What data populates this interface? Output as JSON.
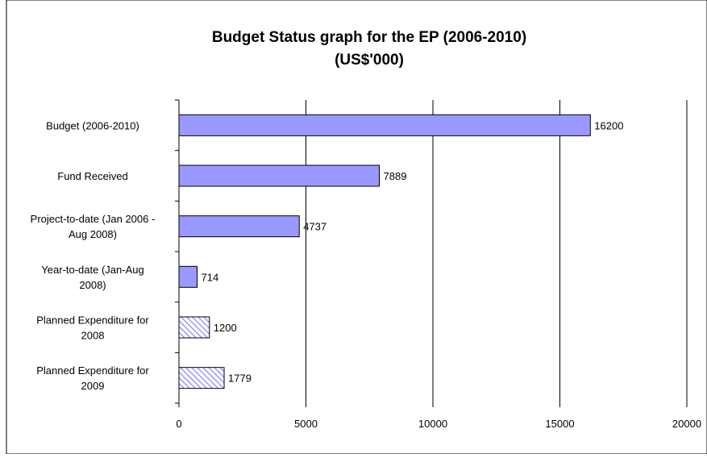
{
  "chart_data": {
    "type": "bar",
    "orientation": "horizontal",
    "title": "Budget Status graph for the EP (2006-2010)",
    "subtitle": "(US$'000)",
    "categories": [
      [
        "Budget (2006-2010)"
      ],
      [
        "Fund Received"
      ],
      [
        "Project-to-date (Jan 2006 -",
        "Aug 2008)"
      ],
      [
        "Year-to-date (Jan-Aug",
        "2008)"
      ],
      [
        "Planned Expenditure for",
        "2008"
      ],
      [
        "Planned Expenditure for",
        "2009"
      ]
    ],
    "values": [
      16200,
      7889,
      4737,
      714,
      1200,
      1779
    ],
    "data_labels": [
      "16200",
      "7889",
      "4737",
      "714",
      "1200",
      "1779"
    ],
    "bar_fill": [
      "solid",
      "solid",
      "solid",
      "solid",
      "hatched",
      "hatched"
    ],
    "xlim": [
      0,
      20000
    ],
    "xticks": [
      0,
      5000,
      10000,
      15000,
      20000
    ],
    "xtick_labels": [
      "0",
      "5000",
      "10000",
      "15000",
      "20000"
    ],
    "grid": "vertical major gridlines",
    "legend": "none",
    "colors": {
      "bar": "#9999ff",
      "outline": "#000000",
      "hatch": "#9999ff"
    }
  }
}
